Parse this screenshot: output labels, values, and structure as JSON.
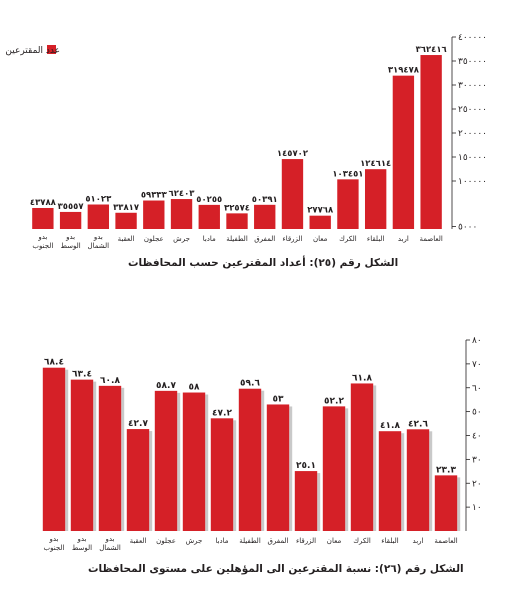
{
  "colors": {
    "bar": "#d52027",
    "shadow": "#c9c9c9",
    "text": "#231f20",
    "grid": "#231f20"
  },
  "chart_data": [
    {
      "type": "bar",
      "title": "الشكل رقم (٢٥): أعداد المقترعين حسب المحافظات",
      "legend": {
        "label": "عدد المقترعين",
        "position": "top-left"
      },
      "categories": [
        "العاصمة",
        "اربد",
        "البلقاء",
        "الكرك",
        "معان",
        "الزرقاء",
        "المفرق",
        "الطفيلة",
        "مادبا",
        "جرش",
        "عجلون",
        "العقبة",
        "بدو الشمال",
        "بدو الوسط",
        "بدو الجنوب"
      ],
      "values": [
        362416,
        319478,
        124614,
        103451,
        27768,
        145702,
        50391,
        32574,
        50255,
        62403,
        59333,
        33817,
        51023,
        35557,
        43788
      ],
      "value_labels": [
        "٣٦٢٤١٦",
        "٣١٩٤٧٨",
        "١٢٤٦١٤",
        "١٠٣٤٥١",
        "٢٧٧٦٨",
        "١٤٥٧٠٢",
        "٥٠٣٩١",
        "٣٢٥٧٤",
        "٥٠٢٥٥",
        "٦٢٤٠٣",
        "٥٩٣٣٣",
        "٣٣٨١٧",
        "٥١٠٢٣",
        "٣٥٥٥٧",
        "٤٣٧٨٨"
      ],
      "ylim": [
        0,
        400000
      ],
      "yticks": [
        5000,
        100000,
        150000,
        200000,
        250000,
        300000,
        350000,
        400000
      ],
      "ytick_labels": [
        "٥٠٠٠",
        "١٠٠٠٠٠",
        "١٥٠٠٠٠",
        "٢٠٠٠٠٠",
        "٢٥٠٠٠٠",
        "٣٠٠٠٠٠",
        "٣٥٠٠٠٠",
        "٤٠٠٠٠٠"
      ],
      "grid": false
    },
    {
      "type": "bar",
      "title": "الشكل رقم (٢٦): نسبة المقترعين الى المؤهلين على مستوى المحافظات",
      "categories": [
        "العاصمة",
        "اربد",
        "البلقاء",
        "الكرك",
        "معان",
        "الزرقاء",
        "المفرق",
        "الطفيلة",
        "مادبا",
        "جرش",
        "عجلون",
        "العقبة",
        "بدو الشمال",
        "بدو الوسط",
        "بدو الجنوب"
      ],
      "values": [
        23.3,
        42.6,
        41.8,
        61.8,
        52.2,
        25.1,
        53,
        59.6,
        47.2,
        58,
        58.7,
        42.7,
        60.8,
        63.4,
        68.4
      ],
      "value_labels": [
        "٢٣.٣",
        "٤٢.٦",
        "٤١.٨",
        "٦١.٨",
        "٥٢.٢",
        "٢٥.١",
        "٥٣",
        "٥٩.٦",
        "٤٧.٢",
        "٥٨",
        "٥٨.٧",
        "٤٢.٧",
        "٦٠.٨",
        "٦٣.٤",
        "٦٨.٤"
      ],
      "ylim": [
        0,
        80
      ],
      "yticks": [
        10,
        20,
        30,
        40,
        50,
        60,
        70,
        80
      ],
      "ytick_labels": [
        "١٠",
        "٢٠",
        "٣٠",
        "٤٠",
        "٥٠",
        "٦٠",
        "٧٠",
        "٨٠"
      ],
      "grid": false
    }
  ]
}
